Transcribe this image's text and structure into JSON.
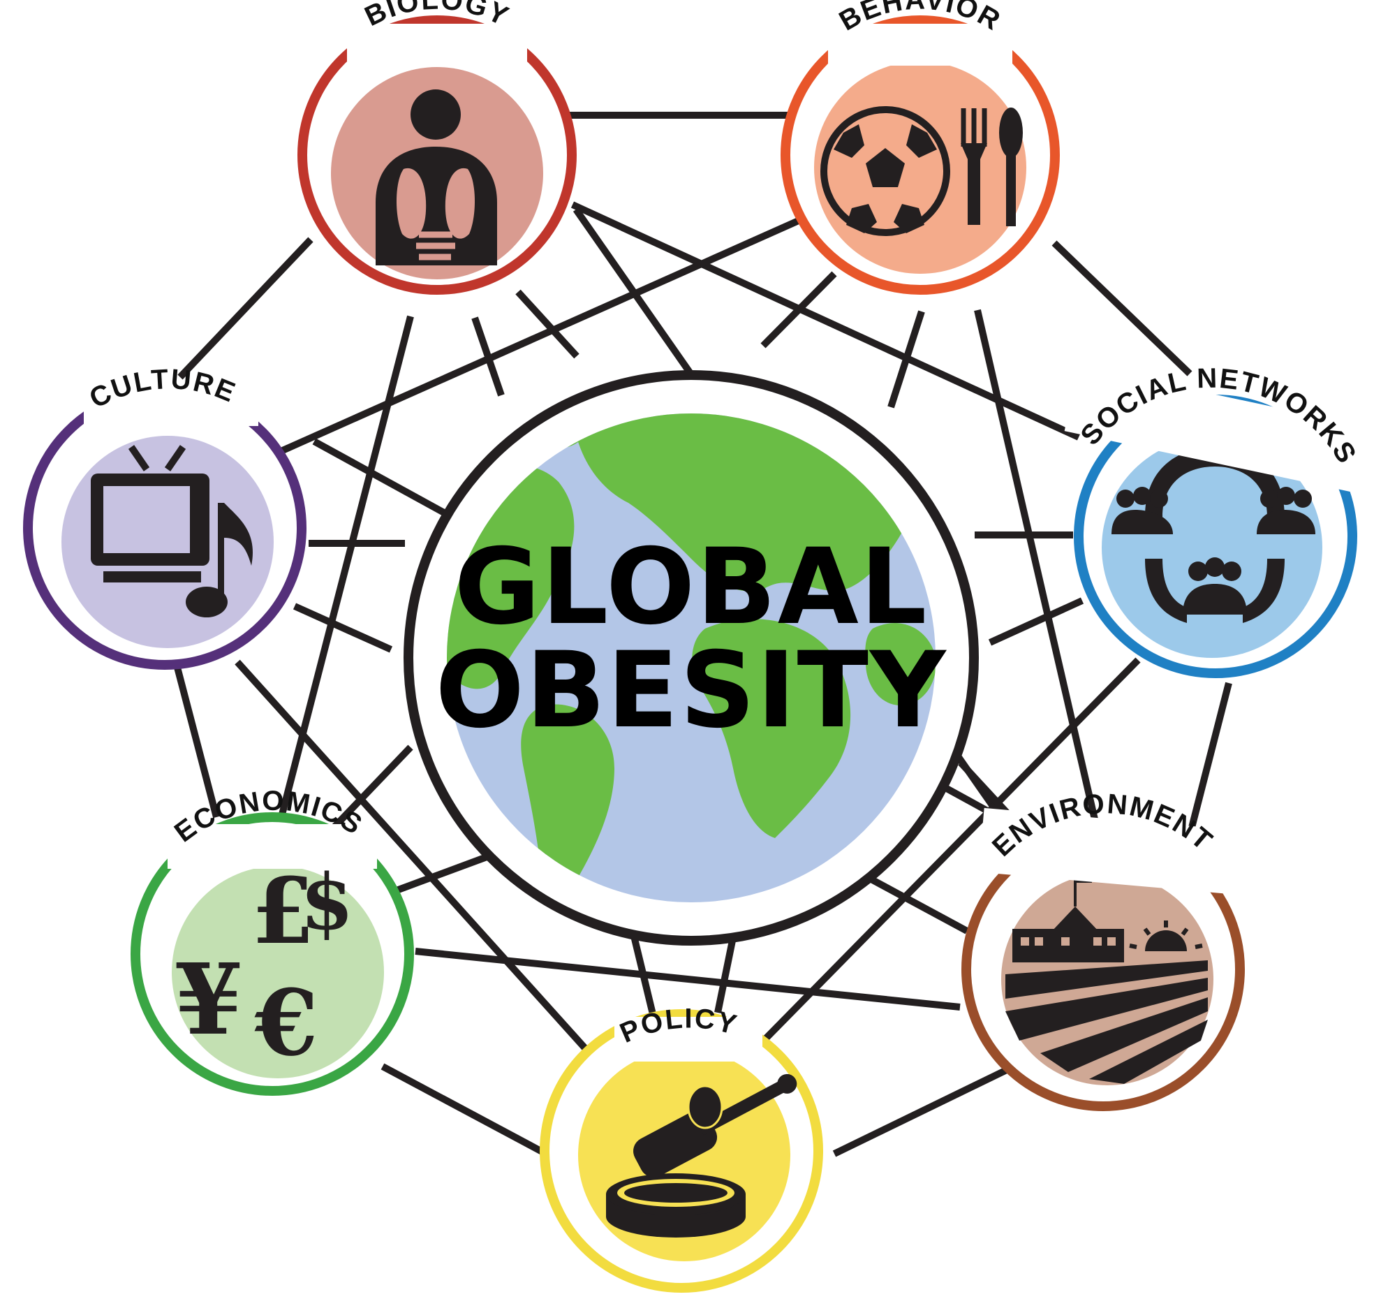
{
  "title": {
    "line1": "GLOBAL",
    "line2": "OBESITY"
  },
  "nodes": {
    "biology": {
      "label": "BIOLOGY",
      "ring_color": "#c0362c",
      "fill_color": "#d99b90",
      "icon": "human-organs-icon"
    },
    "behavior": {
      "label": "BEHAVIOR",
      "ring_color": "#e8562a",
      "fill_color": "#f4ab8b",
      "icon": "soccer-ball-and-cutlery-icon"
    },
    "social_networks": {
      "label": "SOCIAL NETWORKS",
      "ring_color": "#1f80c4",
      "fill_color": "#9cc9ea",
      "icon": "people-groups-icon"
    },
    "environment": {
      "label": "ENVIRONMENT",
      "ring_color": "#9a4e2a",
      "fill_color": "#cfa895",
      "icon": "school-and-farmland-icon"
    },
    "policy": {
      "label": "POLICY",
      "ring_color": "#f2dc3f",
      "fill_color": "#f7e154",
      "icon": "gavel-icon"
    },
    "economics": {
      "label": "ECONOMICS",
      "ring_color": "#3aa644",
      "fill_color": "#c3e0b2",
      "icon": "currency-symbols-icon"
    },
    "culture": {
      "label": "CULTURE",
      "ring_color": "#55307a",
      "fill_color": "#c7c2e1",
      "icon": "tv-and-music-note-icon"
    }
  },
  "currency_symbols": [
    "£",
    "$",
    "¥",
    "€"
  ],
  "colors": {
    "globe_land": "#6abd45",
    "globe_ocean": "#b3c6e7",
    "connector": "#231f20"
  }
}
